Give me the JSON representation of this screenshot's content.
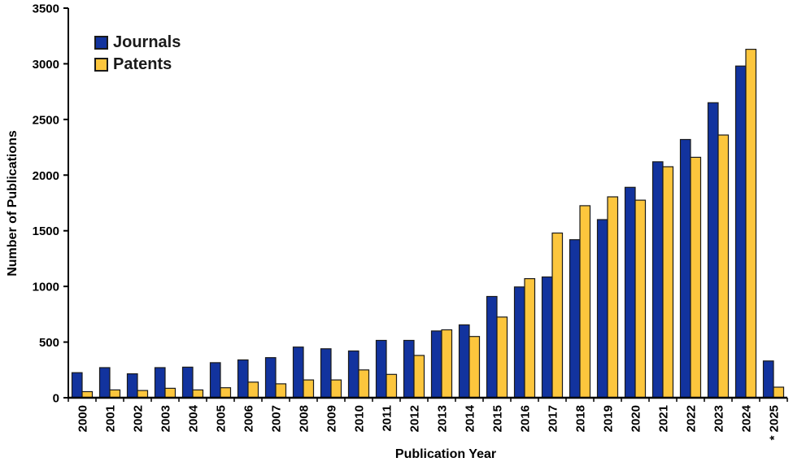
{
  "legend": {
    "items": [
      {
        "label": "Journals",
        "color": "#12339E"
      },
      {
        "label": "Patents",
        "color": "#FCC63D"
      }
    ]
  },
  "chart_data": {
    "type": "bar",
    "title": "",
    "xlabel": "Publication Year",
    "ylabel": "Number of Publications",
    "ylim": [
      0,
      3500
    ],
    "y_ticks": [
      0,
      500,
      1000,
      1500,
      2000,
      2500,
      3000,
      3500
    ],
    "grid": false,
    "legend_position": "top-left-inside",
    "categories": [
      "2000",
      "2001",
      "2002",
      "2003",
      "2004",
      "2005",
      "2006",
      "2007",
      "2008",
      "2009",
      "2010",
      "2011",
      "2012",
      "2013",
      "2014",
      "2015",
      "2016",
      "2017",
      "2018",
      "2019",
      "2020",
      "2021",
      "2022",
      "2023",
      "2024",
      "* 2025"
    ],
    "series": [
      {
        "name": "Journals",
        "color": "#12339E",
        "values": [
          225,
          270,
          215,
          270,
          275,
          315,
          340,
          360,
          455,
          440,
          420,
          515,
          515,
          600,
          655,
          910,
          995,
          1085,
          1420,
          1600,
          1890,
          2120,
          2320,
          2650,
          2980,
          330
        ]
      },
      {
        "name": "Patents",
        "color": "#FCC63D",
        "values": [
          55,
          70,
          65,
          85,
          70,
          90,
          140,
          125,
          160,
          160,
          250,
          210,
          380,
          610,
          550,
          725,
          1070,
          1480,
          1725,
          1805,
          1775,
          2075,
          2160,
          2360,
          3130,
          95
        ]
      }
    ],
    "axis_color": "#000000",
    "bar_outline_color": "#1a1a1a"
  }
}
